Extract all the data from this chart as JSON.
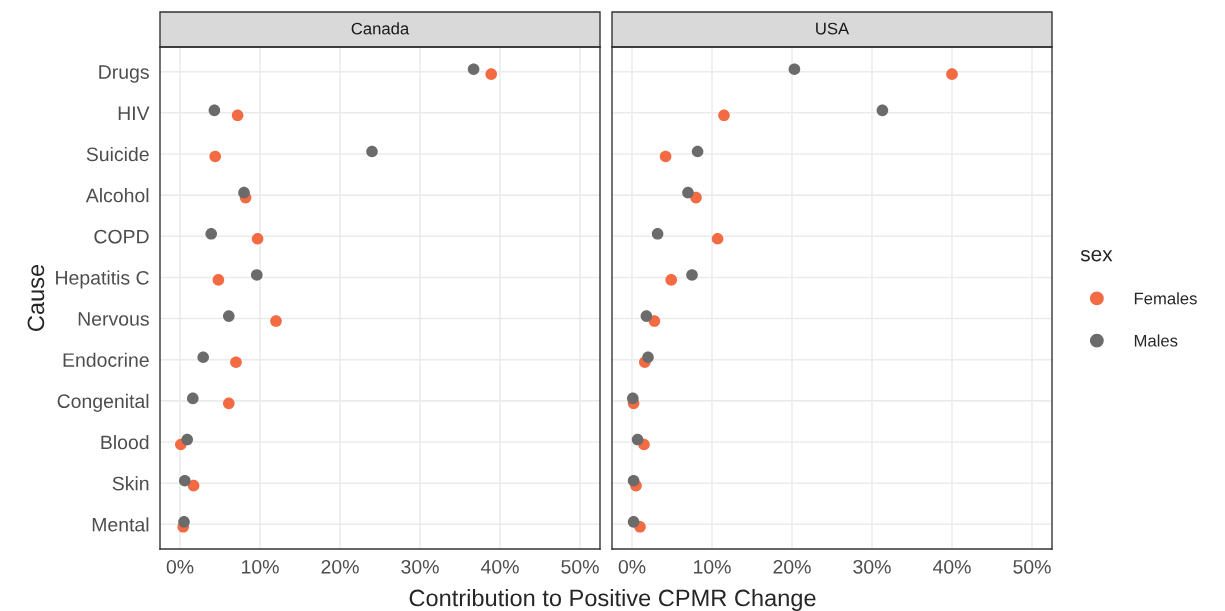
{
  "chart_data": [
    {
      "type": "scatter",
      "title": "Canada",
      "xlabel": "Contribution to Positive CPMR Change",
      "ylabel": "Cause",
      "orientation": "horizontal",
      "categories": [
        "Drugs",
        "HIV",
        "Suicide",
        "Alcohol",
        "COPD",
        "Hepatitis C",
        "Nervous",
        "Endocrine",
        "Congenital",
        "Blood",
        "Skin",
        "Mental"
      ],
      "series": [
        {
          "name": "Females",
          "color": "#f26b43",
          "values": [
            38.9,
            7.2,
            4.4,
            8.2,
            9.7,
            4.8,
            12.0,
            7.0,
            6.1,
            0.1,
            1.7,
            0.4
          ]
        },
        {
          "name": "Males",
          "color": "#6b6b6b",
          "values": [
            36.7,
            4.3,
            24.0,
            8.0,
            3.9,
            9.6,
            6.1,
            2.9,
            1.6,
            0.9,
            0.6,
            0.5
          ]
        }
      ],
      "xlim": [
        -2.5,
        52.5
      ],
      "xticks": [
        {
          "value": 0,
          "label": "0%"
        },
        {
          "value": 10,
          "label": "10%"
        },
        {
          "value": 20,
          "label": "20%"
        },
        {
          "value": 30,
          "label": "30%"
        },
        {
          "value": 40,
          "label": "40%"
        },
        {
          "value": 50,
          "label": "50%"
        }
      ],
      "grid": true,
      "marker": "circle",
      "legend": "right",
      "legend_title": "sex"
    },
    {
      "type": "scatter",
      "title": "USA",
      "orientation": "horizontal",
      "tick_labels": "x",
      "categories": [
        null,
        null,
        null,
        null,
        null,
        null,
        null,
        null,
        null,
        null,
        null,
        null
      ],
      "series": [
        {
          "color": "#f26b43",
          "values": [
            40.0,
            11.5,
            4.2,
            8.0,
            10.7,
            4.9,
            2.8,
            1.6,
            0.2,
            1.5,
            0.5,
            1.0
          ]
        },
        {
          "color": "#6b6b6b",
          "values": [
            20.3,
            31.3,
            8.2,
            7.0,
            3.2,
            7.5,
            1.8,
            2.0,
            0.1,
            0.7,
            0.2,
            0.2
          ]
        }
      ],
      "xlim": [
        -2.5,
        52.5
      ],
      "xticks": [
        {
          "value": 0,
          "label": "0%"
        },
        {
          "value": 10,
          "label": "10%"
        },
        {
          "value": 20,
          "label": "20%"
        },
        {
          "value": 30,
          "label": "30%"
        },
        {
          "value": 40,
          "label": "40%"
        },
        {
          "value": 50,
          "label": "50%"
        }
      ],
      "grid": true,
      "marker": "circle"
    }
  ]
}
